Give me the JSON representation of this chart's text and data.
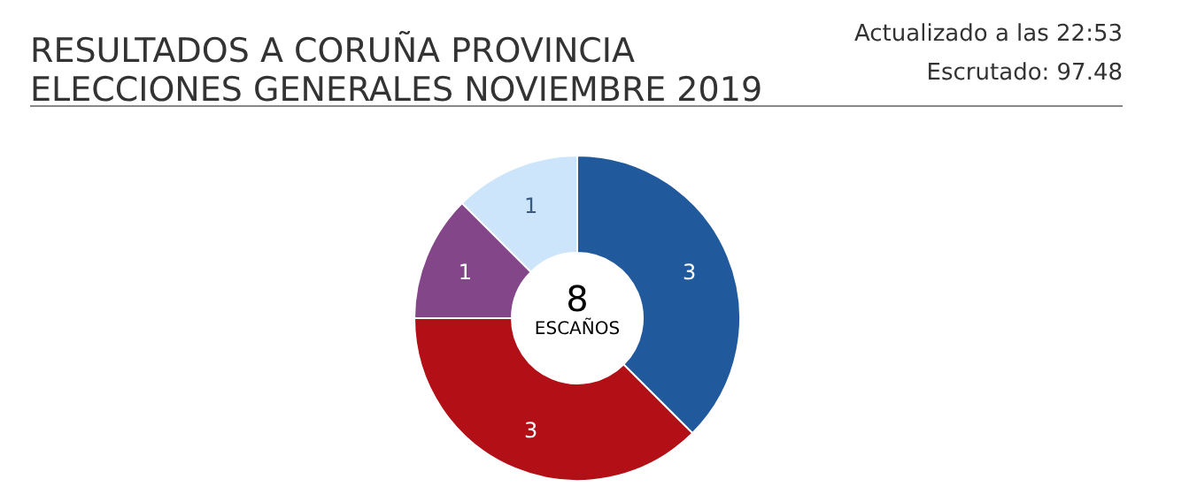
{
  "chart_data": {
    "type": "donut",
    "title": "RESULTADOS A CORUÑA PROVINCIA\nELECCIONES GENERALES NOVIEMBRE 2019",
    "annotations": [
      "Actualizado a las 22:53",
      "Escrutado: 97.48",
      "8",
      "ESCAÑOS"
    ],
    "categories": [
      null,
      null,
      null,
      null
    ],
    "values": [
      3,
      3,
      1,
      1
    ],
    "colors": [
      "#205a9c",
      "#b20f17",
      "#834689",
      "#cde5fb"
    ],
    "data_labels": true
  }
}
